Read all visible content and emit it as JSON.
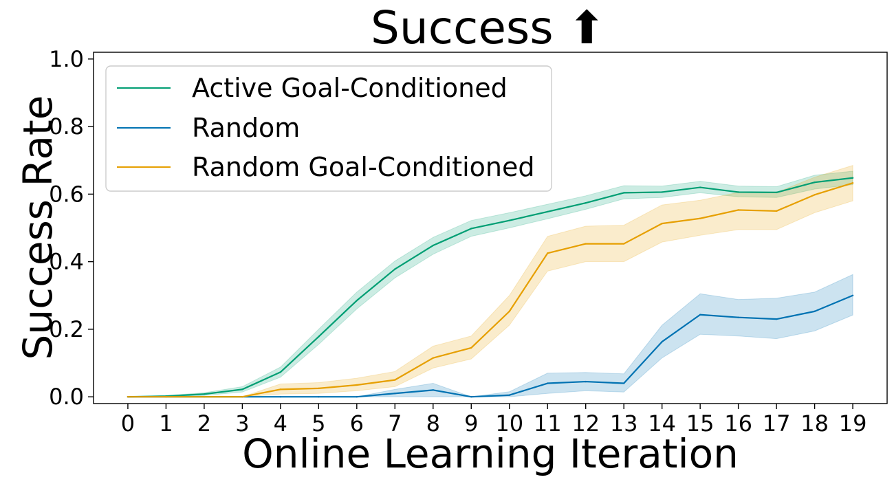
{
  "chart_data": {
    "type": "line",
    "title": "Success ⬆",
    "xlabel": "Online Learning Iteration",
    "ylabel": "Success Rate",
    "x": [
      0,
      1,
      2,
      3,
      4,
      5,
      6,
      7,
      8,
      9,
      10,
      11,
      12,
      13,
      14,
      15,
      16,
      17,
      18,
      19
    ],
    "x_tick_labels": [
      "0",
      "1",
      "2",
      "3",
      "4",
      "5",
      "6",
      "7",
      "8",
      "9",
      "10",
      "11",
      "12",
      "13",
      "14",
      "15",
      "16",
      "17",
      "18",
      "19"
    ],
    "y_ticks": [
      0.0,
      0.2,
      0.4,
      0.6,
      0.8,
      1.0
    ],
    "y_tick_labels": [
      "0.0",
      "0.2",
      "0.4",
      "0.6",
      "0.8",
      "1.0"
    ],
    "xlim": [
      -0.9,
      19.9
    ],
    "ylim": [
      -0.02,
      1.02
    ],
    "grid": false,
    "legend_position": "top-left",
    "series": [
      {
        "name": "Active Goal-Conditioned",
        "color": "#009e73",
        "values": [
          0.0,
          0.002,
          0.008,
          0.022,
          0.073,
          0.178,
          0.285,
          0.378,
          0.448,
          0.498,
          0.522,
          0.548,
          0.574,
          0.604,
          0.606,
          0.62,
          0.606,
          0.605,
          0.635,
          0.648
        ],
        "lower": [
          0.0,
          0.0,
          0.004,
          0.014,
          0.058,
          0.155,
          0.26,
          0.352,
          0.422,
          0.475,
          0.5,
          0.527,
          0.555,
          0.586,
          0.59,
          0.604,
          0.592,
          0.59,
          0.615,
          0.628
        ],
        "upper": [
          0.0,
          0.004,
          0.012,
          0.03,
          0.088,
          0.2,
          0.31,
          0.402,
          0.472,
          0.522,
          0.545,
          0.57,
          0.595,
          0.625,
          0.624,
          0.638,
          0.624,
          0.622,
          0.656,
          0.668
        ]
      },
      {
        "name": "Random",
        "color": "#0072b2",
        "values": [
          0.0,
          0.0,
          0.0,
          0.0,
          0.0,
          0.0,
          0.0,
          0.01,
          0.02,
          0.0,
          0.005,
          0.04,
          0.045,
          0.04,
          0.163,
          0.243,
          0.235,
          0.23,
          0.253,
          0.3
        ],
        "lower": [
          0.0,
          0.0,
          0.0,
          0.0,
          0.0,
          0.0,
          0.0,
          0.0,
          0.0,
          0.0,
          0.0,
          0.01,
          0.018,
          0.014,
          0.115,
          0.185,
          0.18,
          0.172,
          0.195,
          0.242
        ],
        "upper": [
          0.0,
          0.0,
          0.0,
          0.0,
          0.0,
          0.0,
          0.0,
          0.022,
          0.04,
          0.0,
          0.015,
          0.07,
          0.072,
          0.068,
          0.212,
          0.305,
          0.288,
          0.292,
          0.31,
          0.362
        ]
      },
      {
        "name": "Random Goal-Conditioned",
        "color": "#e69f00",
        "values": [
          0.0,
          0.0,
          0.0,
          0.0,
          0.022,
          0.025,
          0.035,
          0.05,
          0.115,
          0.145,
          0.253,
          0.425,
          0.453,
          0.453,
          0.513,
          0.528,
          0.553,
          0.55,
          0.598,
          0.633
        ],
        "lower": [
          0.0,
          0.0,
          0.0,
          0.0,
          0.008,
          0.01,
          0.018,
          0.03,
          0.085,
          0.112,
          0.212,
          0.372,
          0.4,
          0.4,
          0.458,
          0.478,
          0.495,
          0.495,
          0.545,
          0.58
        ],
        "upper": [
          0.0,
          0.0,
          0.0,
          0.0,
          0.038,
          0.042,
          0.055,
          0.075,
          0.15,
          0.18,
          0.3,
          0.475,
          0.505,
          0.508,
          0.568,
          0.582,
          0.605,
          0.605,
          0.65,
          0.685
        ]
      }
    ]
  }
}
